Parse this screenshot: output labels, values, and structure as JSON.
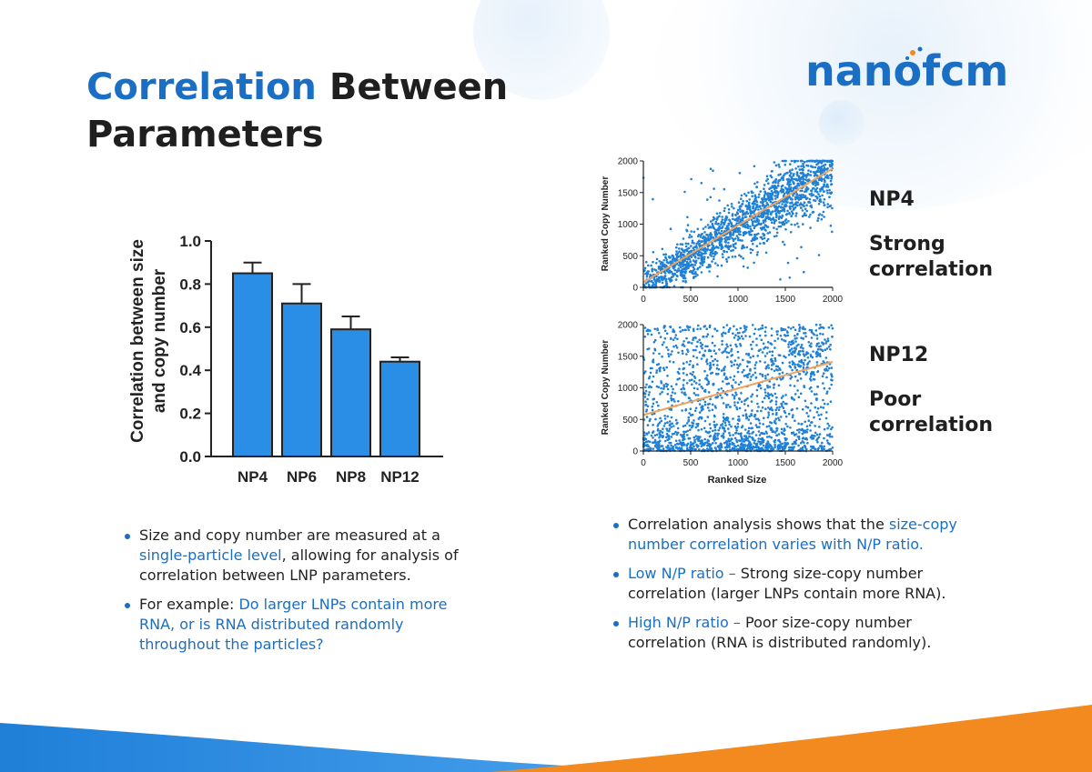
{
  "title": {
    "accent": "Correlation",
    "rest": " Between Parameters"
  },
  "logo": {
    "text": "nanofcm"
  },
  "colors": {
    "brand_blue": "#1a6fc4",
    "bar_blue": "#2b8ee6",
    "trend_orange": "#f0a35b",
    "wave_orange": "#f28a1f"
  },
  "chart_data": [
    {
      "type": "bar",
      "title": "",
      "categories": [
        "NP4",
        "NP6",
        "NP8",
        "NP12"
      ],
      "values": [
        0.85,
        0.71,
        0.59,
        0.44
      ],
      "error": [
        0.05,
        0.09,
        0.06,
        0.02
      ],
      "ylabel_line1": "Correlation between size",
      "ylabel_line2": "and copy number",
      "xlabel": "",
      "ylim": [
        0,
        1.0
      ],
      "yticks": [
        "0.0",
        "0.2",
        "0.4",
        "0.6",
        "0.8",
        "1.0"
      ]
    },
    {
      "type": "scatter",
      "name": "NP4",
      "correlation_label": "Strong correlation",
      "xlabel": "",
      "ylabel": "Ranked Copy Number",
      "xlim": [
        0,
        2000
      ],
      "ylim": [
        0,
        2000
      ],
      "xticks": [
        "0",
        "500",
        "1000",
        "1500",
        "2000"
      ],
      "yticks": [
        "0",
        "500",
        "1000",
        "1500",
        "2000"
      ],
      "trend": {
        "intercept": 80,
        "slope": 0.9
      },
      "n_points": 1800
    },
    {
      "type": "scatter",
      "name": "NP12",
      "correlation_label": "Poor correlation",
      "xlabel": "Ranked Size",
      "ylabel": "Ranked Copy Number",
      "xlim": [
        0,
        2000
      ],
      "ylim": [
        0,
        2000
      ],
      "xticks": [
        "0",
        "500",
        "1000",
        "1500",
        "2000"
      ],
      "yticks": [
        "0",
        "500",
        "1000",
        "1500",
        "2000"
      ],
      "trend": {
        "intercept": 570,
        "slope": 0.42
      },
      "n_points": 1800
    }
  ],
  "side_labels": {
    "np4_name": "NP4",
    "np4_line1": "Strong",
    "np4_line2": "correlation",
    "np12_name": "NP12",
    "np12_line1": "Poor",
    "np12_line2": "correlation"
  },
  "bullets_left": [
    {
      "pre": "Size and copy number are measured at a ",
      "hl": "single-particle level",
      "post": ", allowing for analysis of correlation between LNP parameters."
    },
    {
      "pre": "For example: ",
      "hl": "Do larger LNPs contain more RNA, or is RNA distributed randomly throughout the particles?",
      "post": ""
    }
  ],
  "bullets_right": [
    {
      "pre": "Correlation analysis shows that the ",
      "hl": "size-copy number correlation varies with N/P ratio.",
      "post": ""
    },
    {
      "pre": "",
      "hl": "Low N/P ratio –",
      "post": " Strong size-copy number correlation (larger LNPs contain more RNA)."
    },
    {
      "pre": "",
      "hl": "High N/P ratio –",
      "post": " Poor size-copy number correlation (RNA is distributed randomly)."
    }
  ]
}
